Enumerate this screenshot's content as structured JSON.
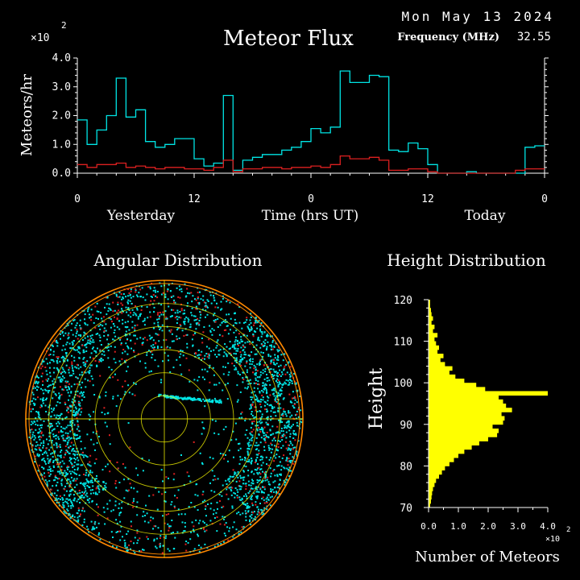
{
  "header": {
    "date": "Mon May 13 2024",
    "title": "Meteor Flux",
    "freq_label": "Frequency (MHz)",
    "freq_value": "32.55",
    "y_multiplier": "×10",
    "y_multiplier_exp": "2"
  },
  "colors": {
    "background": "#000000",
    "axis": "#ffffff",
    "cyan": "#00e5e5",
    "red": "#dd2020",
    "yellow": "#ffff00",
    "ring": "#ff8800",
    "ring_inner": "#ffff00"
  },
  "chart_data": [
    {
      "type": "line",
      "name": "flux",
      "title": "Meteor Flux",
      "ylabel": "Meteors/hr",
      "xlabel": "Time (hrs UT)",
      "x_group_labels": [
        "Yesterday",
        "Today"
      ],
      "x_tick_labels": [
        "0",
        "12",
        "0",
        "12",
        "0"
      ],
      "x_ticks": [
        0,
        12,
        24,
        36,
        48
      ],
      "xlim": [
        0,
        48
      ],
      "ylim": [
        0,
        4.0
      ],
      "y_tick_labels": [
        "0.0",
        "1.0",
        "2.0",
        "3.0",
        "4.0"
      ],
      "y_ticks": [
        0,
        1,
        2,
        3,
        4
      ],
      "y_scale_note": "×10^2",
      "step": true,
      "series": [
        {
          "color": "cyan",
          "values": [
            1.85,
            1.0,
            1.5,
            2.0,
            3.3,
            1.95,
            2.2,
            1.1,
            0.9,
            1.0,
            1.2,
            1.2,
            0.5,
            0.25,
            0.35,
            2.7,
            0.1,
            0.45,
            0.55,
            0.65,
            0.65,
            0.8,
            0.9,
            1.1,
            1.55,
            1.4,
            1.6,
            3.55,
            3.15,
            3.15,
            3.4,
            3.35,
            0.8,
            0.75,
            1.05,
            0.85,
            0.3,
            0.0,
            0.0,
            0.0,
            0.05,
            0.0,
            0.0,
            0.0,
            0.0,
            0.0,
            0.9,
            0.95
          ]
        },
        {
          "color": "red",
          "values": [
            0.3,
            0.2,
            0.3,
            0.3,
            0.35,
            0.2,
            0.25,
            0.2,
            0.15,
            0.2,
            0.2,
            0.15,
            0.15,
            0.1,
            0.2,
            0.45,
            0.05,
            0.15,
            0.15,
            0.2,
            0.2,
            0.15,
            0.2,
            0.2,
            0.25,
            0.2,
            0.3,
            0.6,
            0.5,
            0.5,
            0.55,
            0.45,
            0.1,
            0.1,
            0.15,
            0.15,
            0.05,
            0.0,
            0.0,
            0.0,
            0.0,
            0.0,
            0.0,
            0.0,
            0.0,
            0.1,
            0.15,
            0.15
          ]
        }
      ]
    },
    {
      "type": "scatter",
      "name": "angular",
      "title": "Angular Distribution",
      "projection": "polar",
      "rings": 6,
      "point_generation": "sampled",
      "colors": [
        "cyan",
        "red"
      ]
    },
    {
      "type": "bar",
      "name": "height",
      "title": "Height Distribution",
      "orientation": "horizontal",
      "xlabel": "Number of Meteors",
      "ylabel": "Height",
      "x_scale_note": "×10^2",
      "xlim": [
        0,
        4.0
      ],
      "x_ticks": [
        0,
        1,
        2,
        3,
        4
      ],
      "x_tick_labels": [
        "0.0",
        "1.0",
        "2.0",
        "3.0",
        "4.0"
      ],
      "ylim": [
        70,
        120
      ],
      "y_ticks": [
        70,
        80,
        90,
        100,
        110,
        120
      ],
      "y_tick_labels": [
        "70",
        "80",
        "90",
        "100",
        "110",
        "120"
      ],
      "bin": 1,
      "heights": [
        70,
        71,
        72,
        73,
        74,
        75,
        76,
        77,
        78,
        79,
        80,
        81,
        82,
        83,
        84,
        85,
        86,
        87,
        88,
        89,
        90,
        91,
        92,
        93,
        94,
        95,
        96,
        97,
        98,
        99,
        100,
        101,
        102,
        103,
        104,
        105,
        106,
        107,
        108,
        109,
        110,
        111,
        112,
        113,
        114,
        115,
        116,
        117,
        118,
        119
      ],
      "values": [
        0.05,
        0.08,
        0.1,
        0.12,
        0.15,
        0.2,
        0.25,
        0.35,
        0.45,
        0.55,
        0.7,
        0.85,
        1.0,
        1.2,
        1.45,
        1.7,
        2.0,
        2.3,
        2.35,
        2.15,
        2.5,
        2.55,
        2.45,
        2.8,
        2.6,
        2.5,
        2.35,
        4.0,
        1.9,
        1.6,
        1.2,
        0.9,
        0.7,
        0.8,
        0.55,
        0.4,
        0.5,
        0.3,
        0.35,
        0.25,
        0.2,
        0.3,
        0.15,
        0.2,
        0.1,
        0.15,
        0.1,
        0.08,
        0.05,
        0.05
      ]
    }
  ]
}
